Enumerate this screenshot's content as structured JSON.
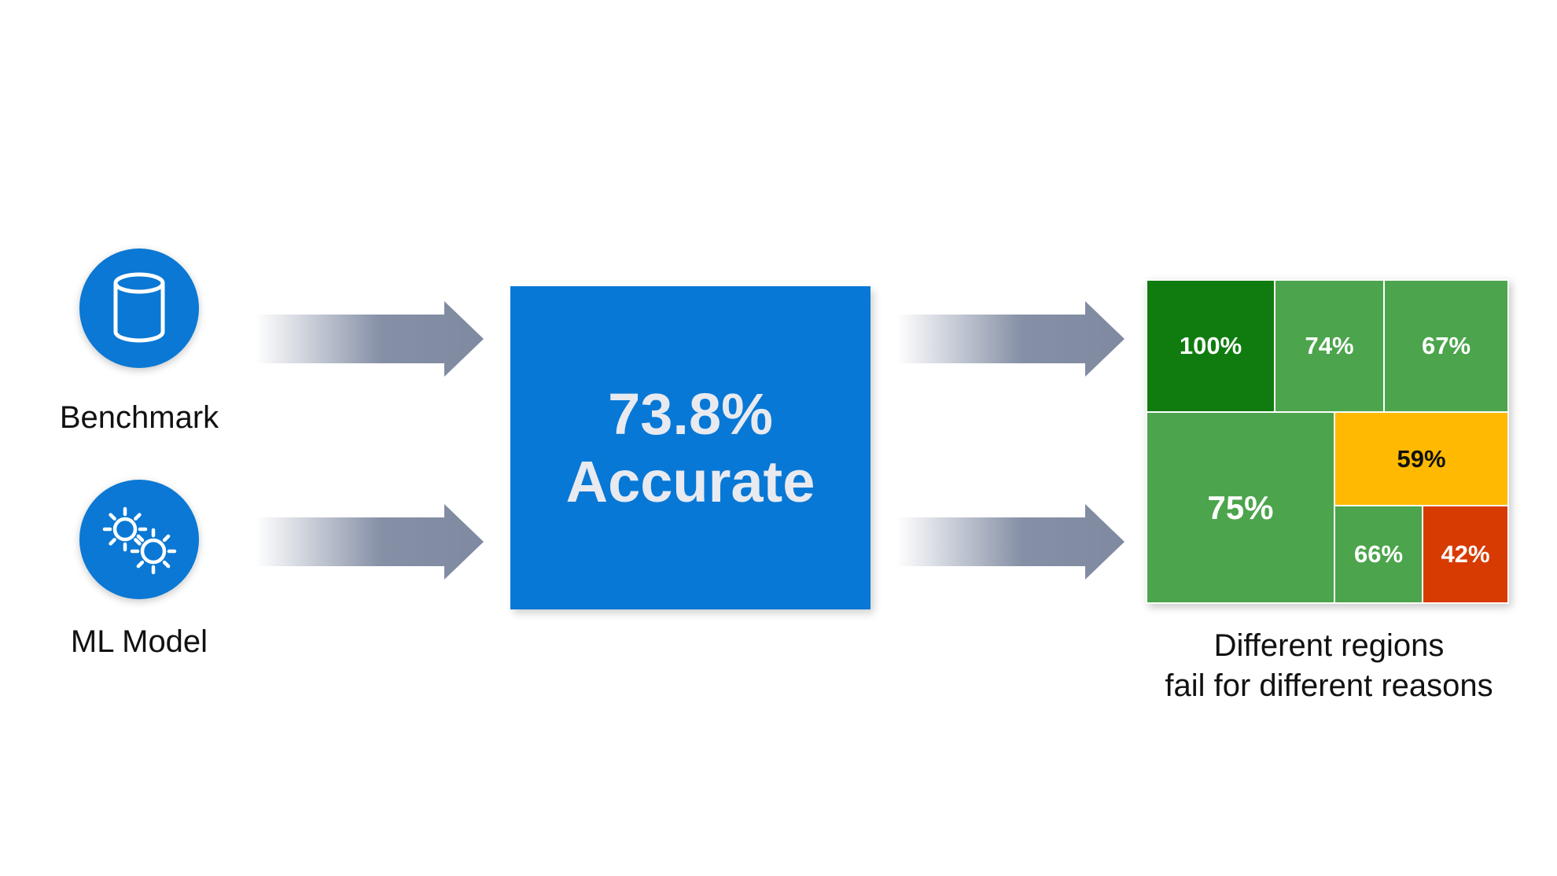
{
  "inputs": [
    {
      "label": "Benchmark",
      "icon": "database-icon"
    },
    {
      "label": "ML Model",
      "icon": "gears-icon"
    }
  ],
  "result": {
    "value": "73.8%",
    "label": "Accurate",
    "color": "#0878d6"
  },
  "regions": {
    "cells": [
      {
        "label": "100%",
        "color": "#107c10"
      },
      {
        "label": "74%",
        "color": "#4ca44c"
      },
      {
        "label": "67%",
        "color": "#4ca44c"
      },
      {
        "label": "75%",
        "color": "#4ca44c"
      },
      {
        "label": "59%",
        "color": "#ffb900"
      },
      {
        "label": "66%",
        "color": "#4ca44c"
      },
      {
        "label": "42%",
        "color": "#d83b01"
      }
    ],
    "caption_line1": "Different regions",
    "caption_line2": "fail for different reasons"
  },
  "colors": {
    "accent_blue": "#0a78d4",
    "arrow": "#7f8aa1"
  }
}
